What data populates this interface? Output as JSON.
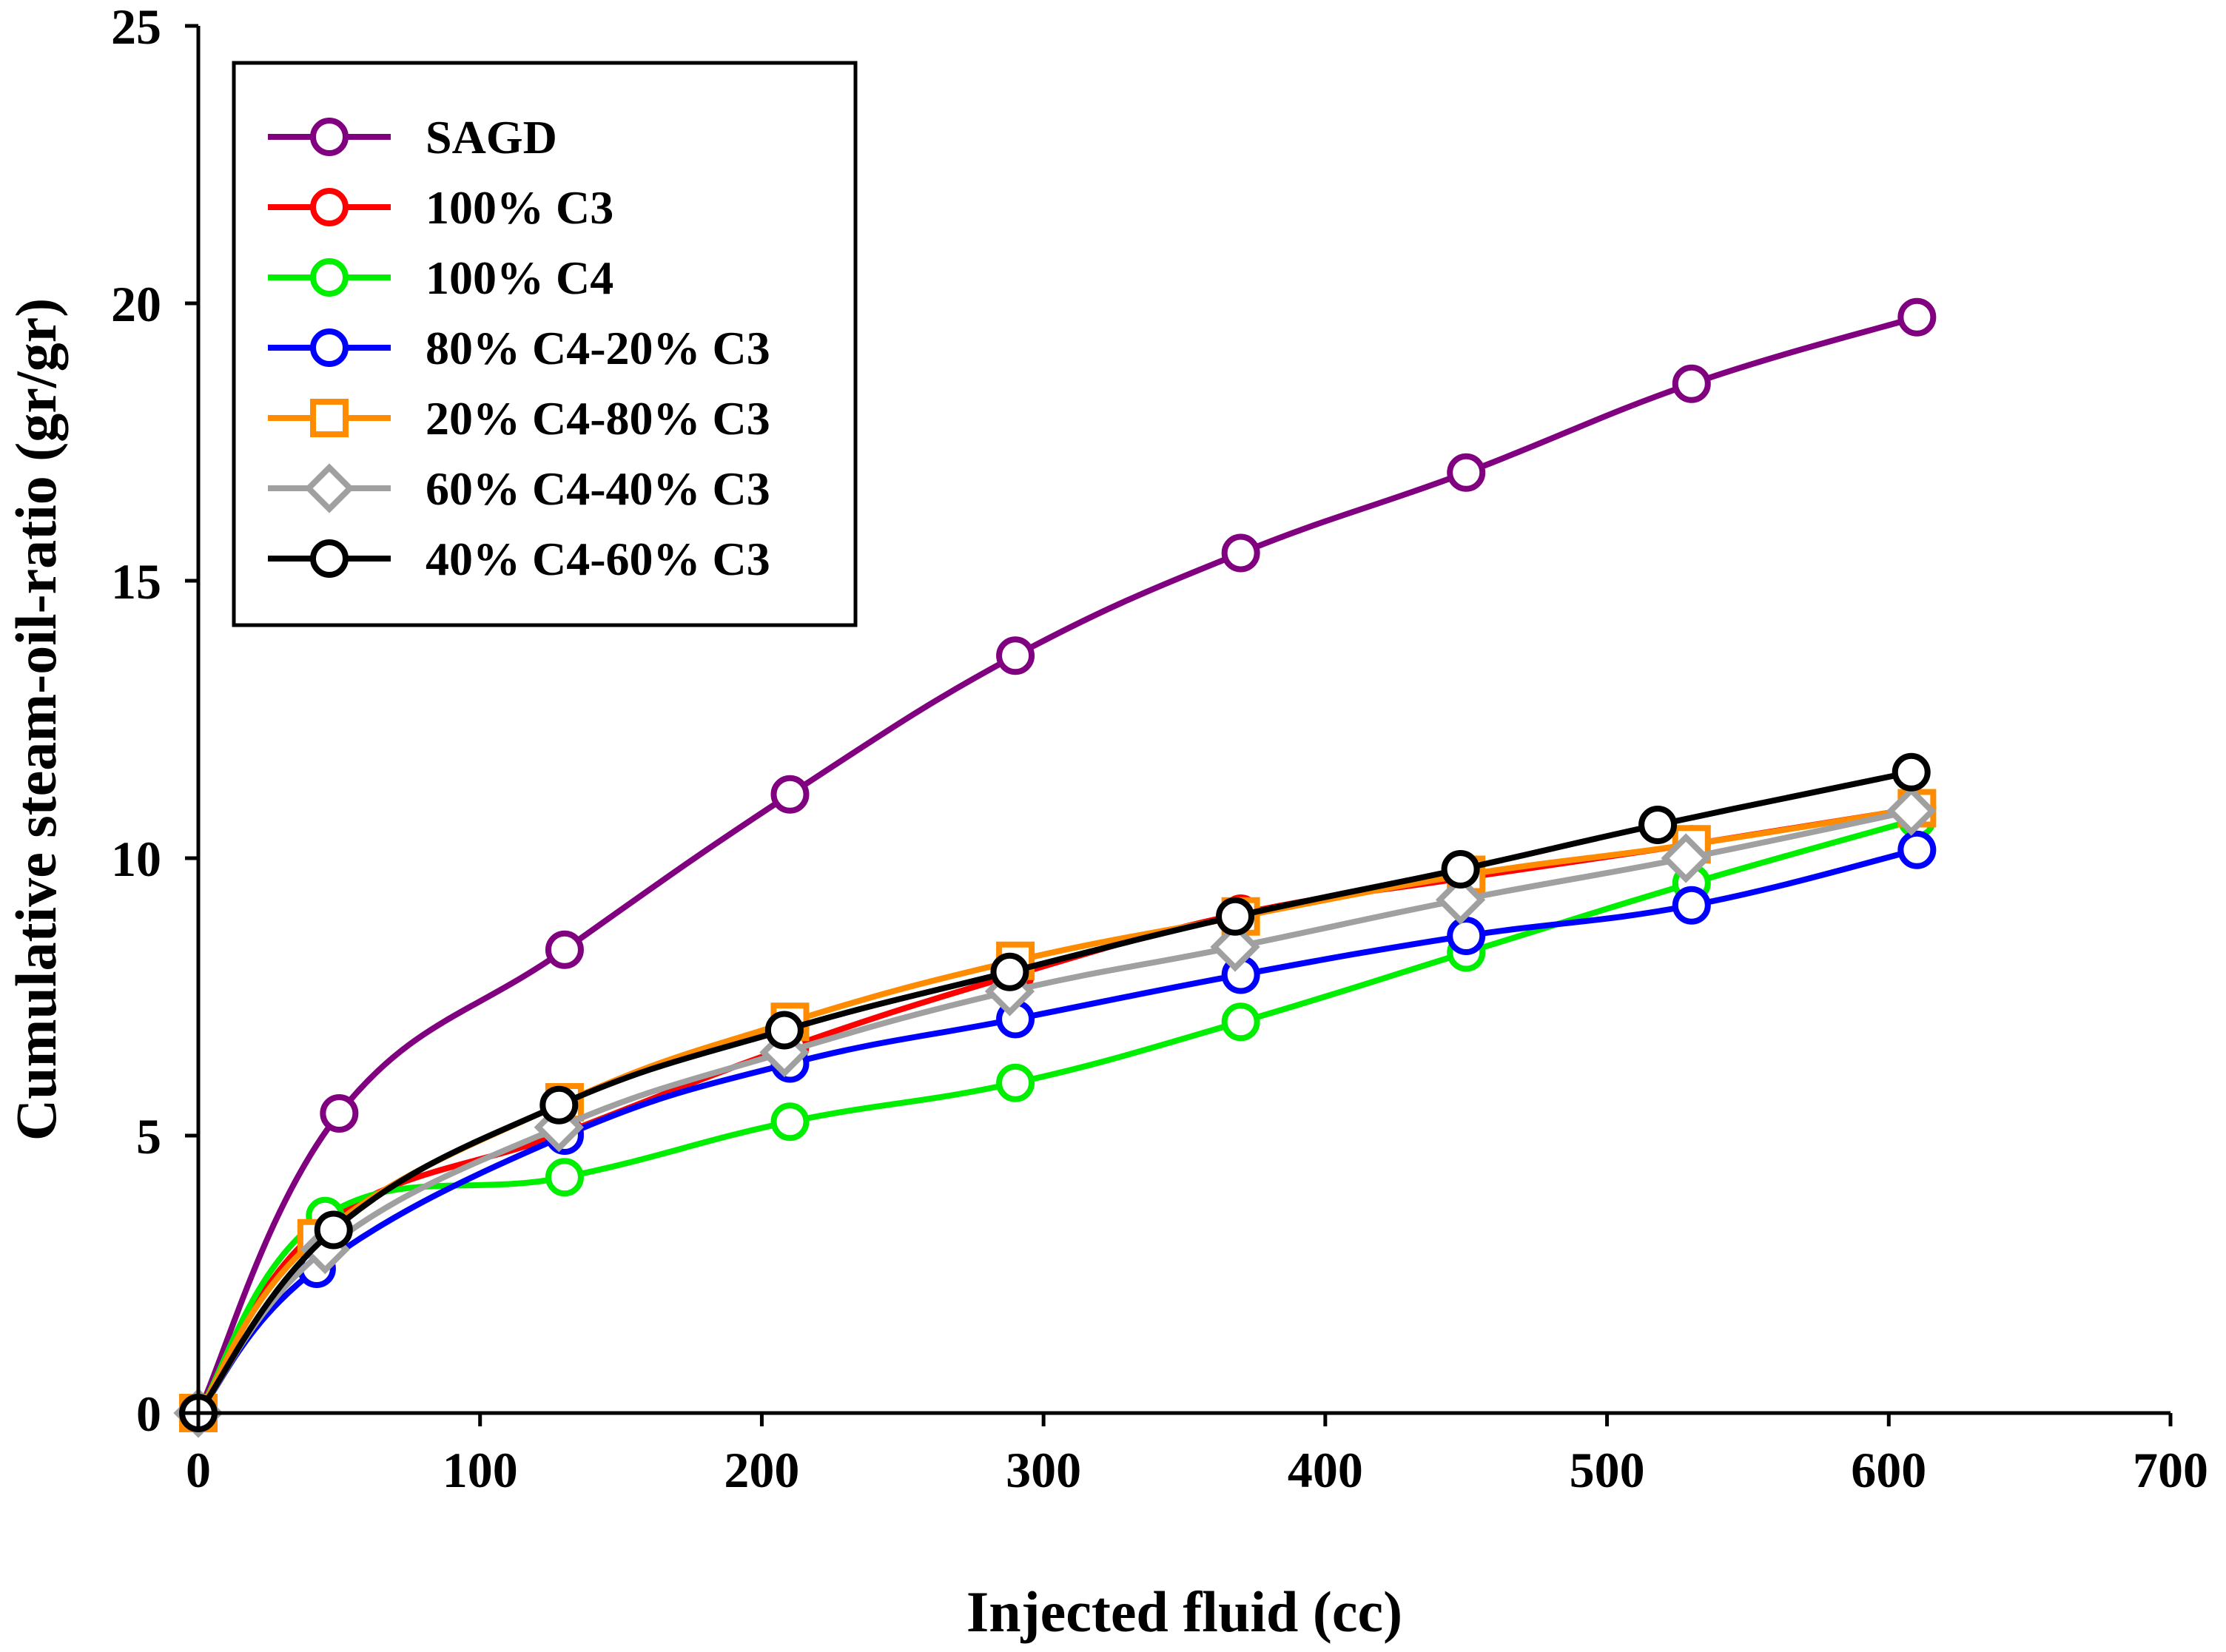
{
  "chart_data": {
    "type": "line",
    "title": "",
    "xlabel": "Injected fluid (cc)",
    "ylabel": "Cumulative steam-oil-ratio (gr/gr)",
    "xlim": [
      0,
      700
    ],
    "ylim": [
      0,
      25
    ],
    "xticks": [
      "0",
      "100",
      "200",
      "300",
      "400",
      "500",
      "600",
      "700"
    ],
    "yticks": [
      "0",
      "5",
      "10",
      "15",
      "20",
      "25"
    ],
    "xtick_values": [
      0,
      100,
      200,
      300,
      400,
      500,
      600,
      700
    ],
    "ytick_values": [
      0,
      5,
      10,
      15,
      20,
      25
    ],
    "grid": false,
    "legend_position": "top-left",
    "series": [
      {
        "name": "SAGD",
        "color": "#800080",
        "marker": "circle",
        "points": [
          [
            0,
            0
          ],
          [
            50,
            5.4
          ],
          [
            130,
            8.35
          ],
          [
            210,
            11.15
          ],
          [
            290,
            13.65
          ],
          [
            370,
            15.5
          ],
          [
            450,
            16.95
          ],
          [
            530,
            18.55
          ],
          [
            610,
            19.75
          ]
        ]
      },
      {
        "name": "100% C3",
        "color": "#ff0000",
        "marker": "circle",
        "points": [
          [
            0,
            0
          ],
          [
            45,
            3.4
          ],
          [
            130,
            5.05
          ],
          [
            210,
            6.6
          ],
          [
            290,
            7.9
          ],
          [
            370,
            9.0
          ],
          [
            450,
            9.65
          ],
          [
            530,
            10.25
          ],
          [
            610,
            10.9
          ]
        ]
      },
      {
        "name": "100% C4",
        "color": "#00ee00",
        "marker": "circle",
        "points": [
          [
            0,
            0
          ],
          [
            45,
            3.55
          ],
          [
            130,
            4.25
          ],
          [
            210,
            5.25
          ],
          [
            290,
            5.95
          ],
          [
            370,
            7.05
          ],
          [
            450,
            8.3
          ],
          [
            530,
            9.55
          ],
          [
            610,
            10.7
          ]
        ]
      },
      {
        "name": "80% C4-20% C3",
        "color": "#0000ff",
        "marker": "circle",
        "points": [
          [
            0,
            0
          ],
          [
            42,
            2.6
          ],
          [
            130,
            5.0
          ],
          [
            210,
            6.3
          ],
          [
            290,
            7.1
          ],
          [
            370,
            7.9
          ],
          [
            450,
            8.6
          ],
          [
            530,
            9.15
          ],
          [
            610,
            10.15
          ]
        ]
      },
      {
        "name": "20% C4-80% C3",
        "color": "#ff8c00",
        "marker": "square",
        "points": [
          [
            0,
            0
          ],
          [
            42,
            3.15
          ],
          [
            130,
            5.6
          ],
          [
            210,
            7.05
          ],
          [
            290,
            8.15
          ],
          [
            370,
            8.95
          ],
          [
            450,
            9.7
          ],
          [
            530,
            10.25
          ],
          [
            610,
            10.9
          ]
        ]
      },
      {
        "name": "60% C4-40% C3",
        "color": "#a0a0a0",
        "marker": "diamond",
        "points": [
          [
            0,
            0
          ],
          [
            45,
            2.95
          ],
          [
            128,
            5.15
          ],
          [
            208,
            6.5
          ],
          [
            288,
            7.6
          ],
          [
            368,
            8.4
          ],
          [
            448,
            9.25
          ],
          [
            528,
            10.0
          ],
          [
            608,
            10.85
          ]
        ]
      },
      {
        "name": "40% C4-60% C3",
        "color": "#000000",
        "marker": "circle",
        "points": [
          [
            0,
            0
          ],
          [
            48,
            3.3
          ],
          [
            128,
            5.55
          ],
          [
            208,
            6.9
          ],
          [
            288,
            7.95
          ],
          [
            368,
            8.95
          ],
          [
            448,
            9.8
          ],
          [
            518,
            10.6
          ],
          [
            608,
            11.55
          ]
        ]
      }
    ]
  }
}
